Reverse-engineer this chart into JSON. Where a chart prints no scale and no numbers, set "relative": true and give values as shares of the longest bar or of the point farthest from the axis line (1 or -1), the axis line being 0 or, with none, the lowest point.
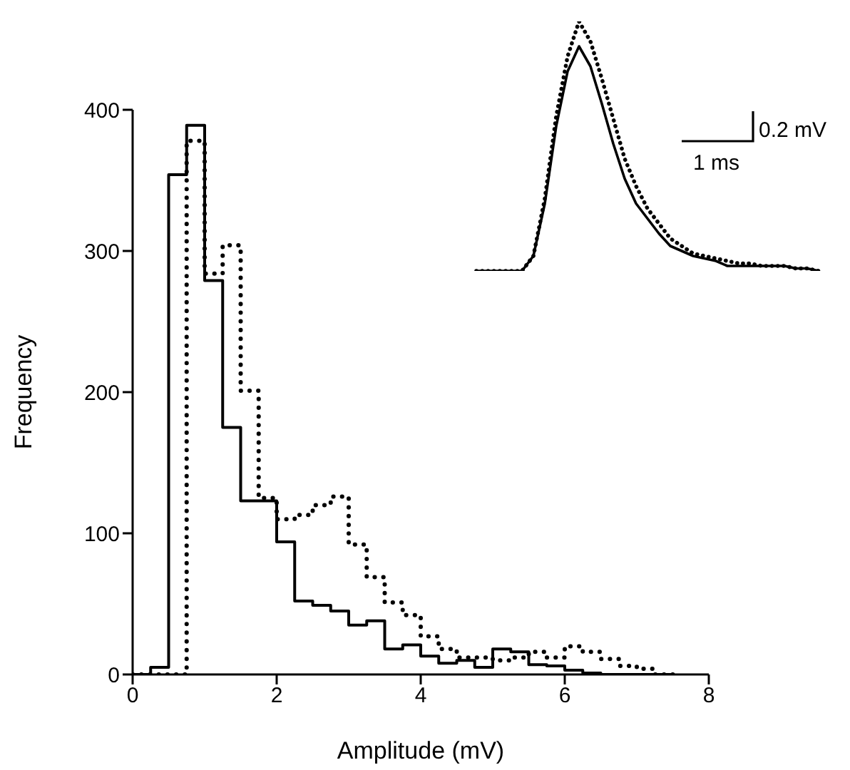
{
  "chart_data": [
    {
      "type": "histogram",
      "xlabel": "Amplitude (mV)",
      "ylabel": "Frequency",
      "bins": [
        0,
        0.25,
        0.5,
        0.75,
        1,
        1.25,
        1.5,
        1.75,
        2,
        2.25,
        2.5,
        2.75,
        3,
        3.25,
        3.5,
        3.75,
        4,
        4.25,
        4.5,
        4.75,
        5,
        5.25,
        5.5,
        5.75,
        6,
        6.25,
        6.5,
        6.75,
        7,
        7.25,
        7.5
      ],
      "series": [
        {
          "color": "#000000",
          "line_style": "solid",
          "values": [
            0,
            5,
            354,
            389,
            279,
            175,
            123,
            123,
            94,
            52,
            49,
            45,
            35,
            38,
            18,
            21,
            13,
            8,
            10,
            5,
            18,
            16,
            7,
            6,
            3,
            1,
            0,
            0,
            0,
            0
          ]
        },
        {
          "color": "#000000",
          "line_style": "dotted",
          "values": [
            0,
            0,
            0,
            378,
            284,
            304,
            201,
            125,
            110,
            113,
            120,
            126,
            92,
            69,
            51,
            42,
            27,
            18,
            12,
            12,
            10,
            12,
            16,
            12,
            20,
            16,
            11,
            6,
            4,
            0
          ]
        }
      ],
      "xlim": [
        0,
        8
      ],
      "xticks": [
        0,
        2,
        4,
        6,
        8
      ],
      "ylim": [
        0,
        400
      ],
      "yticks": [
        0,
        100,
        200,
        300,
        400
      ]
    },
    {
      "type": "line",
      "relative": true,
      "annotations": [
        "0.2 mV",
        "1 ms"
      ],
      "categories": [
        null,
        null,
        null,
        null,
        null,
        null,
        null,
        null,
        null,
        null,
        null,
        null,
        null,
        null,
        null,
        null,
        null,
        null,
        null,
        null,
        null,
        null,
        null,
        null,
        null,
        null,
        null,
        null,
        null,
        null,
        null
      ],
      "series": [
        {
          "color": "#000000",
          "line_style": "solid",
          "values": [
            0,
            0,
            0,
            0,
            0,
            0.06,
            0.27,
            0.58,
            0.8,
            0.9,
            0.82,
            0.67,
            0.51,
            0.37,
            0.27,
            0.21,
            0.15,
            0.1,
            0.08,
            0.06,
            0.05,
            0.04,
            0.02,
            0.02,
            0.02,
            0.02,
            0.02,
            0.02,
            0.01,
            0.01,
            0
          ]
        },
        {
          "color": "#000000",
          "line_style": "dotted",
          "values": [
            0,
            0,
            0,
            0,
            0,
            0.06,
            0.29,
            0.62,
            0.86,
            1,
            0.92,
            0.77,
            0.61,
            0.45,
            0.34,
            0.25,
            0.19,
            0.13,
            0.1,
            0.07,
            0.06,
            0.05,
            0.04,
            0.03,
            0.03,
            0.02,
            0.02,
            0.02,
            0.01,
            0.01,
            0
          ]
        }
      ]
    }
  ]
}
